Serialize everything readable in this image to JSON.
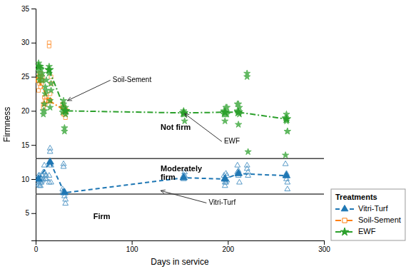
{
  "chart_data": {
    "type": "line",
    "xlabel": "Days in service",
    "ylabel": "Firmness",
    "xlim": [
      0,
      300
    ],
    "ylim": [
      1,
      35
    ],
    "xticks": [
      0,
      100,
      200,
      300
    ],
    "yticks": [
      5,
      10,
      15,
      20,
      25,
      30,
      35
    ],
    "grid": false,
    "legend": "lower right",
    "legend_title": "Treatments",
    "hlines": [
      13.0,
      7.8
    ],
    "series": [
      {
        "type": "scatter",
        "marker": "triangle-open",
        "x": [
          3,
          3,
          3,
          4,
          4,
          4,
          5,
          5,
          5,
          6,
          6,
          7,
          7,
          8,
          8,
          9,
          9,
          10,
          10,
          11,
          11,
          14,
          14,
          15,
          15,
          16,
          16,
          28,
          28,
          29,
          29,
          30,
          30,
          31,
          31,
          154,
          154,
          155,
          155,
          196,
          196,
          197,
          197,
          198,
          198,
          199,
          199,
          210,
          210,
          211,
          211,
          212,
          212,
          220,
          220,
          221,
          221,
          260,
          260,
          261,
          261,
          262,
          262
        ],
        "values": [
          10.5,
          9.5,
          9.2,
          10.5,
          9.8,
          9.0,
          10.2,
          9.5,
          9.0,
          10.0,
          9.5,
          10.5,
          9.8,
          11.0,
          10.0,
          12.0,
          11.0,
          10.5,
          10.0,
          10.5,
          10.0,
          10.5,
          9.5,
          14.5,
          14.0,
          12.0,
          9.5,
          8.5,
          8.0,
          12.2,
          11.8,
          8.2,
          7.5,
          6.4,
          7.0,
          10.5,
          10.0,
          11.0,
          10.5,
          10.5,
          10.0,
          9.5,
          9.0,
          10.8,
          9.5,
          10.5,
          9.8,
          12.0,
          11.0,
          11.2,
          10.5,
          10.8,
          9.5,
          12.0,
          11.5,
          11.0,
          10.5,
          12.2,
          10.5,
          10.8,
          10.0,
          8.5,
          9.5
        ]
      },
      {
        "name": "Vitri-Turf",
        "type": "line",
        "marker": "triangle",
        "line_style": "dashed",
        "x": [
          3,
          15,
          30,
          154,
          197,
          211,
          261
        ],
        "values": [
          10.0,
          12.5,
          8.0,
          10.2,
          10.0,
          10.8,
          10.5
        ]
      },
      {
        "type": "scatter",
        "marker": "square-open",
        "x": [
          3,
          3,
          3,
          4,
          4,
          4,
          5,
          5,
          5,
          6,
          6,
          7,
          7,
          8,
          8,
          9,
          9,
          10,
          10,
          11,
          11,
          14,
          14,
          15,
          15,
          16,
          16,
          28,
          28,
          29,
          29,
          30,
          30,
          31,
          31
        ],
        "values": [
          25.0,
          24.5,
          23.0,
          25.5,
          25.0,
          24.0,
          25.5,
          25.0,
          23.5,
          24.5,
          24.0,
          25.0,
          24.5,
          21.0,
          20.5,
          22.0,
          21.0,
          21.5,
          21.0,
          22.0,
          21.5,
          30.0,
          29.5,
          22.5,
          21.5,
          25.0,
          24.0,
          21.0,
          20.5,
          20.5,
          19.5,
          20.5,
          19.5,
          20.0,
          19.0
        ]
      },
      {
        "name": "Soil-Sement",
        "type": "line",
        "marker": "square-open",
        "line_style": "dashdot",
        "x": [
          3,
          14,
          31
        ],
        "values": [
          24.5,
          21.5,
          20.0
        ]
      },
      {
        "type": "scatter",
        "marker": "star",
        "x": [
          3,
          3,
          3,
          4,
          4,
          4,
          5,
          5,
          5,
          6,
          6,
          7,
          7,
          8,
          8,
          9,
          9,
          10,
          10,
          11,
          11,
          14,
          14,
          15,
          15,
          16,
          16,
          28,
          28,
          29,
          29,
          30,
          30,
          31,
          31,
          154,
          154,
          155,
          155,
          196,
          196,
          197,
          197,
          198,
          198,
          199,
          199,
          210,
          210,
          211,
          211,
          212,
          212,
          220,
          220,
          221,
          260,
          260,
          261,
          261,
          262,
          262
        ],
        "values": [
          27.0,
          26.5,
          26.0,
          25.5,
          25.0,
          24.5,
          26.5,
          26.0,
          25.0,
          25.0,
          24.5,
          25.5,
          24.5,
          20.0,
          19.5,
          21.0,
          20.0,
          23.5,
          22.5,
          24.5,
          23.0,
          26.5,
          25.5,
          21.5,
          20.5,
          24.0,
          23.0,
          20.5,
          19.8,
          21.5,
          21.0,
          17.5,
          17.0,
          20.5,
          19.5,
          20.0,
          19.5,
          19.5,
          18.5,
          20.0,
          19.5,
          19.5,
          18.5,
          20.5,
          19.5,
          20.5,
          19.5,
          21.0,
          20.0,
          21.0,
          18.0,
          20.5,
          19.5,
          25.5,
          25.0,
          14.0,
          13.5,
          19.0,
          18.5,
          19.5,
          17.0,
          17.0
        ]
      },
      {
        "name": "EWF",
        "type": "line",
        "marker": "star",
        "line_style": "dashdot",
        "x": [
          3,
          14,
          31,
          154,
          197,
          211,
          261
        ],
        "values": [
          26.5,
          26.0,
          20.0,
          19.7,
          19.8,
          19.8,
          18.8
        ]
      }
    ],
    "annotations": [
      {
        "text": "Soil-Sement",
        "x": 33,
        "y": 21.5,
        "text_x": 80,
        "text_y": 24.5
      },
      {
        "text": "EWF",
        "x": 155,
        "y": 19.6,
        "text_x": 196,
        "text_y": 15.5
      },
      {
        "text": "Vitri-Turf",
        "x": 130,
        "y": 8.3,
        "text_x": 180,
        "text_y": 6.5
      }
    ],
    "zone_labels": [
      {
        "text": "Not firm",
        "x": 130,
        "y": 17.5
      },
      {
        "text": "Moderately\nfirm",
        "x": 130,
        "y": 10.8
      },
      {
        "text": "Firm",
        "x": 60,
        "y": 4.5
      }
    ]
  }
}
